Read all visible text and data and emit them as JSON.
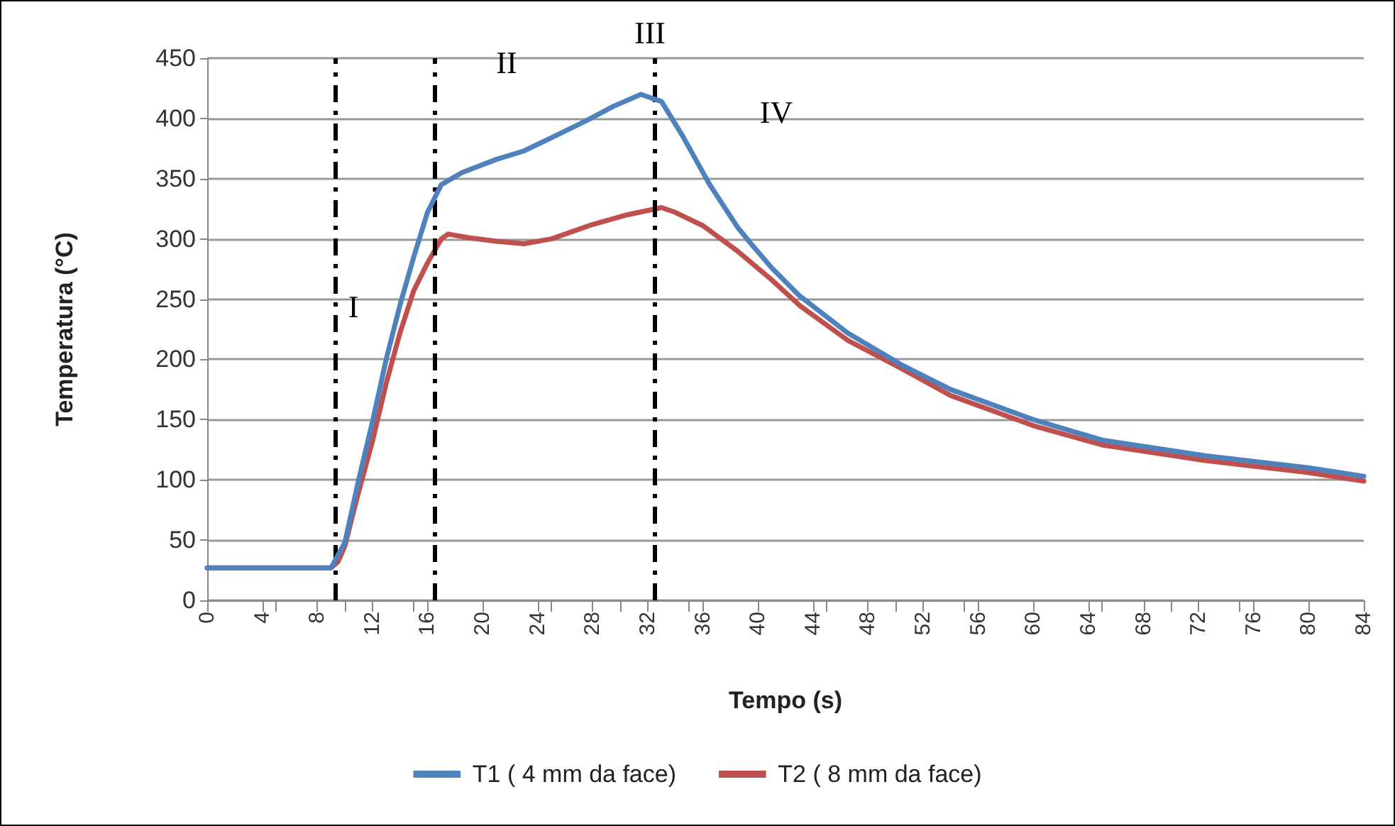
{
  "chart_data": {
    "type": "line",
    "xlabel": "Tempo (s)",
    "ylabel": "Temperatura (°C)",
    "xlim": [
      0,
      84
    ],
    "xticks": [
      0,
      4,
      8,
      12,
      16,
      20,
      24,
      28,
      32,
      36,
      40,
      44,
      48,
      52,
      56,
      60,
      64,
      68,
      72,
      76,
      80,
      84
    ],
    "ylim": [
      0,
      450
    ],
    "yticks": [
      0,
      50,
      100,
      150,
      200,
      250,
      300,
      350,
      400,
      450
    ],
    "grid": "y",
    "legend": "bottom",
    "marker": "none",
    "line_style": "solid",
    "series": [
      {
        "name": "T1 ( 4 mm da face)",
        "color": "#4f81bd",
        "x": [
          0,
          9,
          10,
          11,
          12,
          13,
          14,
          15,
          16,
          17,
          18.5,
          21,
          23,
          25,
          27.5,
          29.5,
          31.5,
          33,
          34.5,
          36.5,
          38.5,
          39.5,
          41,
          43,
          46.5,
          50.5,
          54,
          60,
          65,
          72.5,
          80,
          84
        ],
        "values": [
          27,
          27,
          48,
          100,
          148,
          200,
          245,
          285,
          322,
          345,
          355,
          366,
          373,
          384,
          398,
          410,
          420,
          414,
          386,
          345,
          310,
          296,
          276,
          253,
          222,
          195,
          175,
          150,
          133,
          120,
          110,
          103
        ]
      },
      {
        "name": "T2 ( 8 mm da face)",
        "color": "#c0504d",
        "x": [
          0,
          9,
          9.5,
          10,
          10.5,
          11,
          12,
          13,
          14,
          15,
          16,
          17,
          17.5,
          19,
          21,
          23,
          25,
          28,
          30.5,
          33,
          34,
          36,
          38.5,
          41,
          43,
          46.5,
          50.5,
          54,
          60,
          65,
          72.5,
          80,
          84
        ],
        "values": [
          27,
          27,
          32,
          45,
          68,
          90,
          132,
          180,
          222,
          257,
          280,
          300,
          304,
          301,
          298,
          296,
          300,
          312,
          320,
          326,
          322,
          311,
          290,
          266,
          245,
          216,
          192,
          170,
          145,
          129,
          116,
          106,
          99
        ]
      }
    ],
    "ref_lines": [
      {
        "axis": "x",
        "value": 9.3,
        "color": "#000000",
        "line_style": "dashed"
      },
      {
        "axis": "x",
        "value": 16.5,
        "color": "#000000",
        "line_style": "dashed"
      },
      {
        "axis": "x",
        "value": 32.5,
        "color": "#000000",
        "line_style": "dashed"
      }
    ],
    "annotations": [
      "I",
      "II",
      "III",
      "IV"
    ]
  }
}
